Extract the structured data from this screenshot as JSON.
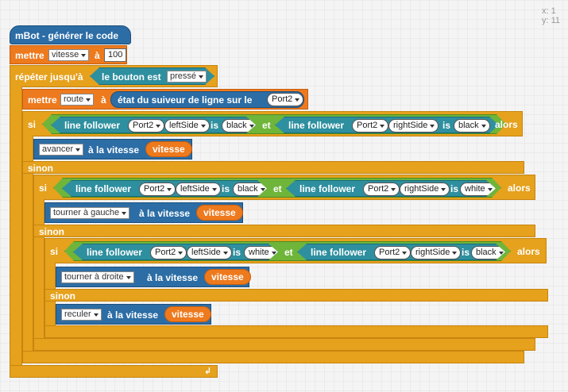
{
  "coords": {
    "x_label": "x:",
    "x_value": "1",
    "y_label": "y:",
    "y_value": "11"
  },
  "hat": {
    "label": "mBot - générer le code"
  },
  "set_speed": {
    "label": "mettre",
    "var": "vitesse",
    "to": "à",
    "value": "100"
  },
  "repeat": {
    "label": "répéter jusqu'à",
    "cond": {
      "label": "le bouton est",
      "state": "pressé"
    }
  },
  "set_route": {
    "label": "mettre",
    "var": "route",
    "to": "à",
    "reporter": "état du suiveur de ligne sur le",
    "port": "Port2"
  },
  "if1": {
    "si": "si",
    "alors": "alors",
    "et": "et",
    "left": {
      "label": "line follower",
      "port": "Port2",
      "side": "leftSide",
      "is": "is",
      "color": "black"
    },
    "right": {
      "label": "line follower",
      "port": "Port2",
      "side": "rightSide",
      "is": "is",
      "color": "black"
    },
    "action": {
      "dir": "avancer",
      "speed_label": "à la vitesse",
      "var": "vitesse"
    },
    "else": "sinon"
  },
  "if2": {
    "si": "si",
    "alors": "alors",
    "et": "et",
    "left": {
      "label": "line follower",
      "port": "Port2",
      "side": "leftSide",
      "is": "is",
      "color": "black"
    },
    "right": {
      "label": "line follower",
      "port": "Port2",
      "side": "rightSide",
      "is": "is",
      "color": "white"
    },
    "action": {
      "dir": "tourner à gauche",
      "speed_label": "à la vitesse",
      "var": "vitesse"
    },
    "else": "sinon"
  },
  "if3": {
    "si": "si",
    "alors": "alors",
    "et": "et",
    "left": {
      "label": "line follower",
      "port": "Port2",
      "side": "leftSide",
      "is": "is",
      "color": "white"
    },
    "right": {
      "label": "line follower",
      "port": "Port2",
      "side": "rightSide",
      "is": "is",
      "color": "black"
    },
    "action": {
      "dir": "tourner à droite",
      "speed_label": "à la vitesse",
      "var": "vitesse"
    },
    "else": "sinon",
    "else_action": {
      "dir": "reculer",
      "speed_label": "à la vitesse",
      "var": "vitesse"
    }
  },
  "colors": {
    "control": "#e6a11d",
    "variable": "#ee7a1e",
    "robot": "#2c6da5",
    "sensor": "#2e8f9f",
    "operator": "#6fb53a"
  }
}
